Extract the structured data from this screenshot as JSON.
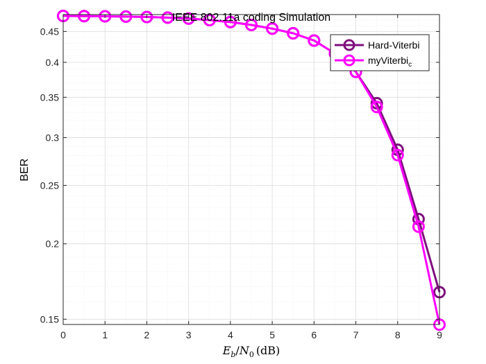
{
  "chart_data": {
    "type": "line",
    "title": "IEEE 802.11a coding Simulation",
    "xlabel": {
      "var_E": "E",
      "var_b": "b",
      "slash": "/",
      "var_N": "N",
      "sub_0": "0",
      "unit": "(dB)"
    },
    "ylabel": "BER",
    "xlim": [
      0,
      9
    ],
    "ylim": [
      0.147,
      0.48
    ],
    "yscale": "log",
    "grid": true,
    "minor_grid": true,
    "legend_position": "top-right",
    "x_ticks": [
      "0",
      "1",
      "2",
      "3",
      "4",
      "5",
      "6",
      "7",
      "8",
      "9"
    ],
    "y_ticks": [
      {
        "value": 0.15,
        "label": "0.15"
      },
      {
        "value": 0.2,
        "label": "0.2"
      },
      {
        "value": 0.25,
        "label": "0.25"
      },
      {
        "value": 0.3,
        "label": "0.3"
      },
      {
        "value": 0.35,
        "label": "0.35"
      },
      {
        "value": 0.4,
        "label": "0.4"
      },
      {
        "value": 0.45,
        "label": "0.45"
      }
    ],
    "x": [
      0,
      0.5,
      1,
      1.5,
      2,
      2.5,
      3,
      3.5,
      4,
      4.5,
      5,
      5.5,
      6,
      6.5,
      7,
      7.5,
      8,
      8.5,
      9
    ],
    "series": [
      {
        "legend": {
          "text": "Hard-Viterbi"
        },
        "color": "#7e0f7e",
        "marker": "circle",
        "values": [
          0.4775,
          0.4772,
          0.4768,
          0.4764,
          0.4755,
          0.4744,
          0.4727,
          0.47,
          0.4665,
          0.4613,
          0.4549,
          0.4469,
          0.4347,
          0.4137,
          0.3857,
          0.3421,
          0.2864,
          0.2198,
          0.1663
        ]
      },
      {
        "legend": {
          "text": "myViterbi",
          "subscript": "c"
        },
        "color": "#ff00ff",
        "marker": "circle",
        "values": [
          0.4775,
          0.4772,
          0.4768,
          0.4764,
          0.4755,
          0.4744,
          0.4727,
          0.47,
          0.4665,
          0.4613,
          0.4549,
          0.4469,
          0.4347,
          0.4137,
          0.3857,
          0.3373,
          0.2806,
          0.2136,
          0.1469
        ]
      }
    ]
  }
}
